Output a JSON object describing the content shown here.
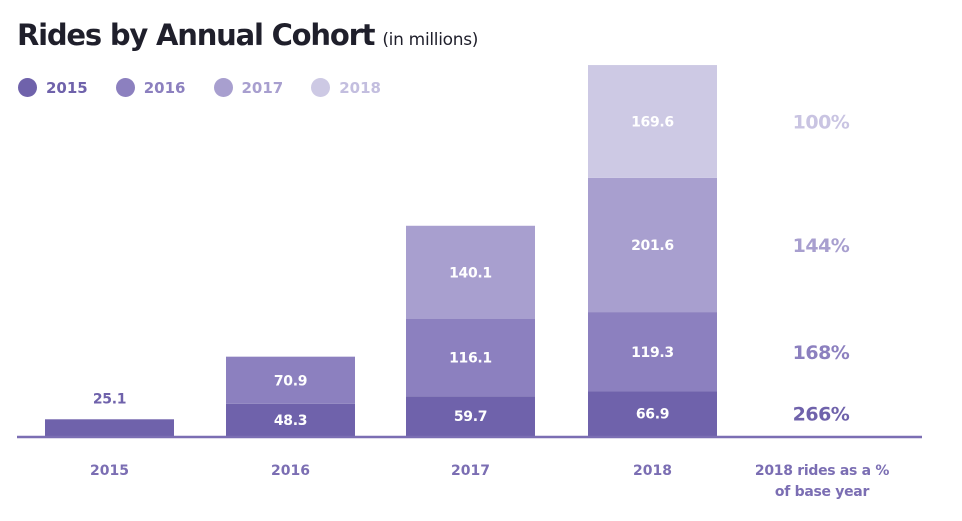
{
  "header": {
    "title": "Rides by Annual Cohort",
    "subtitle": "(in millions)"
  },
  "chart_data": {
    "type": "bar",
    "stacked": true,
    "title": "Rides by Annual Cohort",
    "subtitle": "(in millions)",
    "categories": [
      "2015",
      "2016",
      "2017",
      "2018"
    ],
    "series": [
      {
        "name": "2015",
        "color": "#6f62ab",
        "text_color": "#6f62ab",
        "values": [
          25.1,
          48.3,
          59.7,
          66.9
        ]
      },
      {
        "name": "2016",
        "color": "#8c80bf",
        "text_color": "#8c80bf",
        "values": [
          null,
          70.9,
          116.1,
          119.3
        ]
      },
      {
        "name": "2017",
        "color": "#a89fcf",
        "text_color": "#a89fcf",
        "values": [
          null,
          null,
          140.1,
          201.6
        ]
      },
      {
        "name": "2018",
        "color": "#cdc9e4",
        "text_color": "#c3bedf",
        "values": [
          null,
          null,
          null,
          169.6
        ]
      }
    ],
    "ratio_column": {
      "label_lines": [
        "2018 rides as a %",
        "of base year"
      ],
      "values": [
        "266%",
        "168%",
        "144%",
        "100%"
      ],
      "colors": [
        "#6f62ab",
        "#8c80bf",
        "#a89fcf",
        "#c9c4e2"
      ]
    },
    "axis_color": "#7b6eb3",
    "tick_label_color": "#7b6eb3",
    "legend_position": "top-left",
    "grid": false
  }
}
